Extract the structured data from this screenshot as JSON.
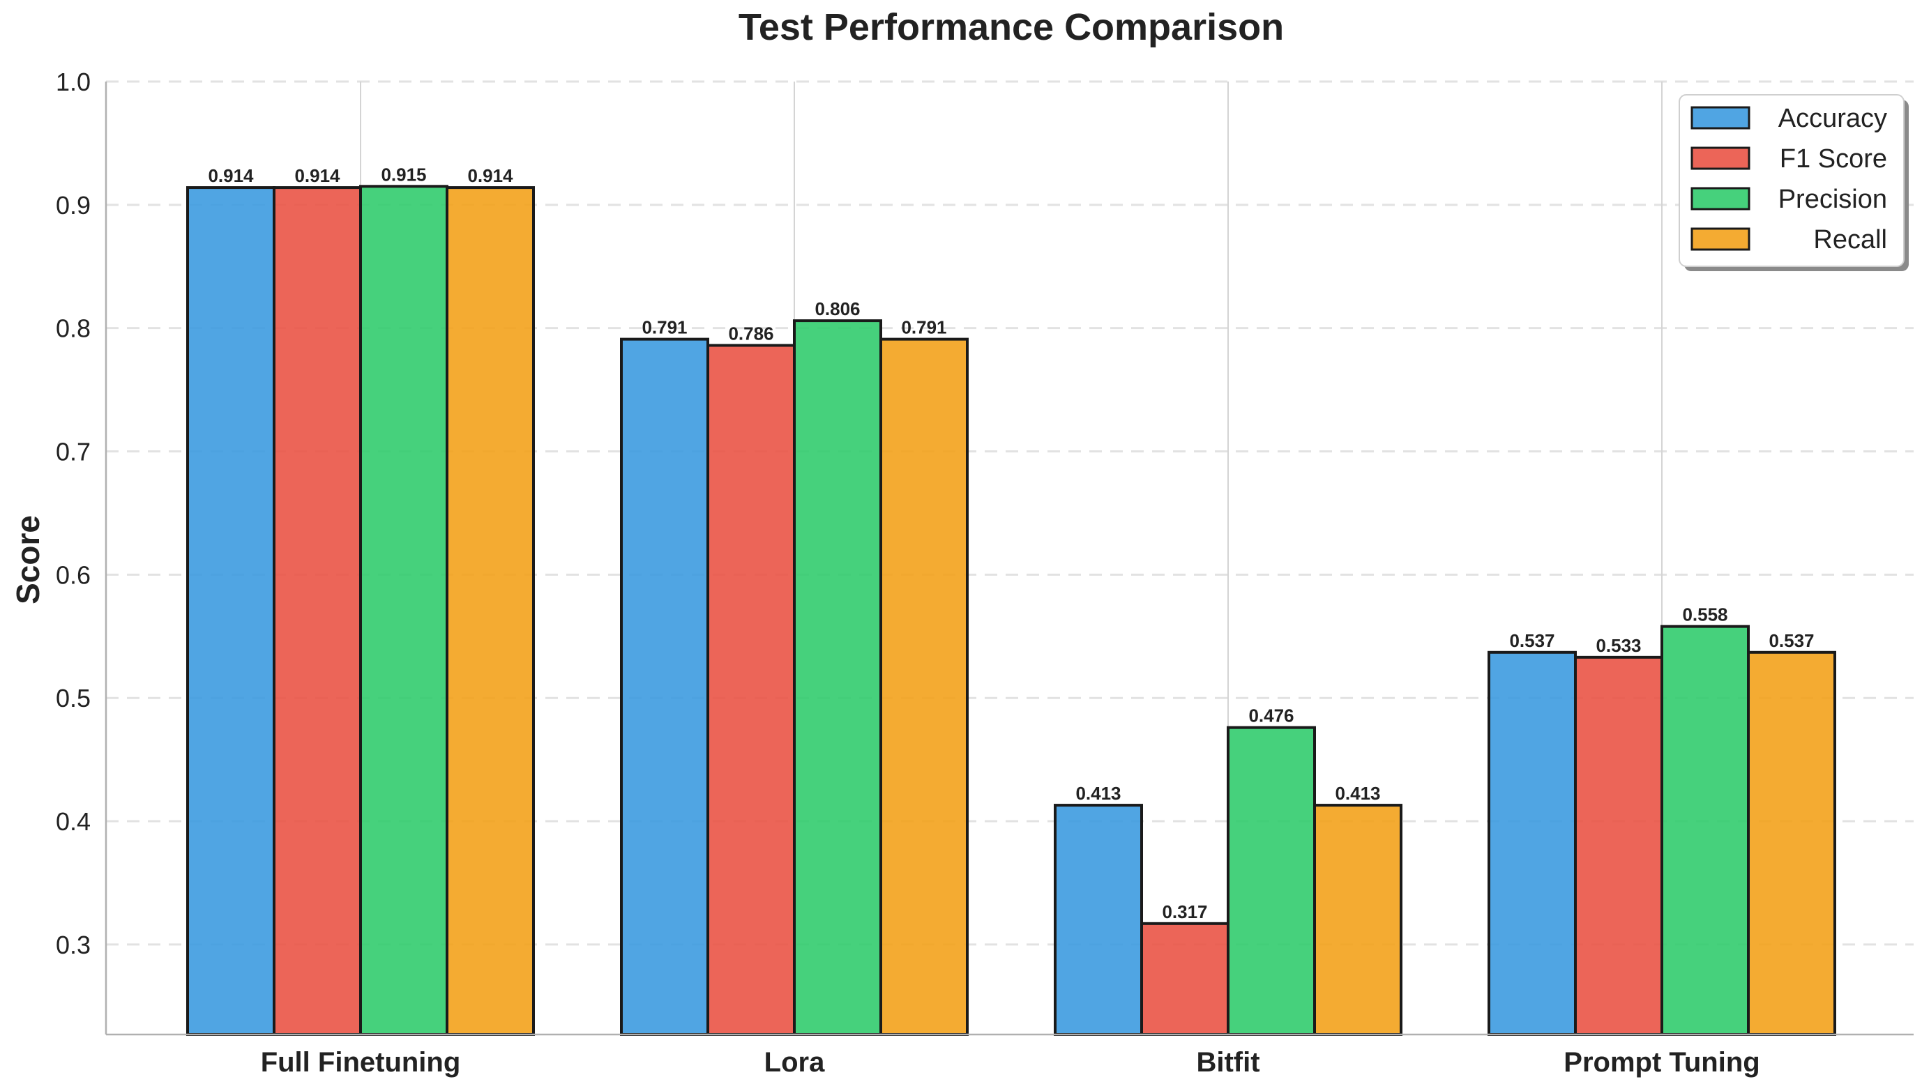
{
  "chart_data": {
    "type": "bar",
    "title": "Test Performance Comparison",
    "xlabel": "",
    "ylabel": "Score",
    "ylim": [
      0.227,
      1.0
    ],
    "yticks": [
      "0.3",
      "0.4",
      "0.5",
      "0.6",
      "0.7",
      "0.8",
      "0.9",
      "1.0"
    ],
    "categories": [
      "Full Finetuning",
      "Lora",
      "Bitfit",
      "Prompt Tuning"
    ],
    "series": [
      {
        "name": "Accuracy",
        "color": "#3d9be0",
        "values": [
          0.914,
          0.791,
          0.413,
          0.537
        ],
        "labels": [
          "0.914",
          "0.791",
          "0.413",
          "0.537"
        ]
      },
      {
        "name": "F1 Score",
        "color": "#ea5446",
        "values": [
          0.914,
          0.786,
          0.317,
          0.533
        ],
        "labels": [
          "0.914",
          "0.786",
          "0.317",
          "0.533"
        ]
      },
      {
        "name": "Precision",
        "color": "#32cc6e",
        "values": [
          0.915,
          0.806,
          0.476,
          0.558
        ],
        "labels": [
          "0.915",
          "0.806",
          "0.476",
          "0.558"
        ]
      },
      {
        "name": "Recall",
        "color": "#f3a21c",
        "values": [
          0.914,
          0.791,
          0.413,
          0.537
        ],
        "labels": [
          "0.914",
          "0.791",
          "0.413",
          "0.537"
        ]
      }
    ],
    "grid": true,
    "legend": "top-right"
  }
}
